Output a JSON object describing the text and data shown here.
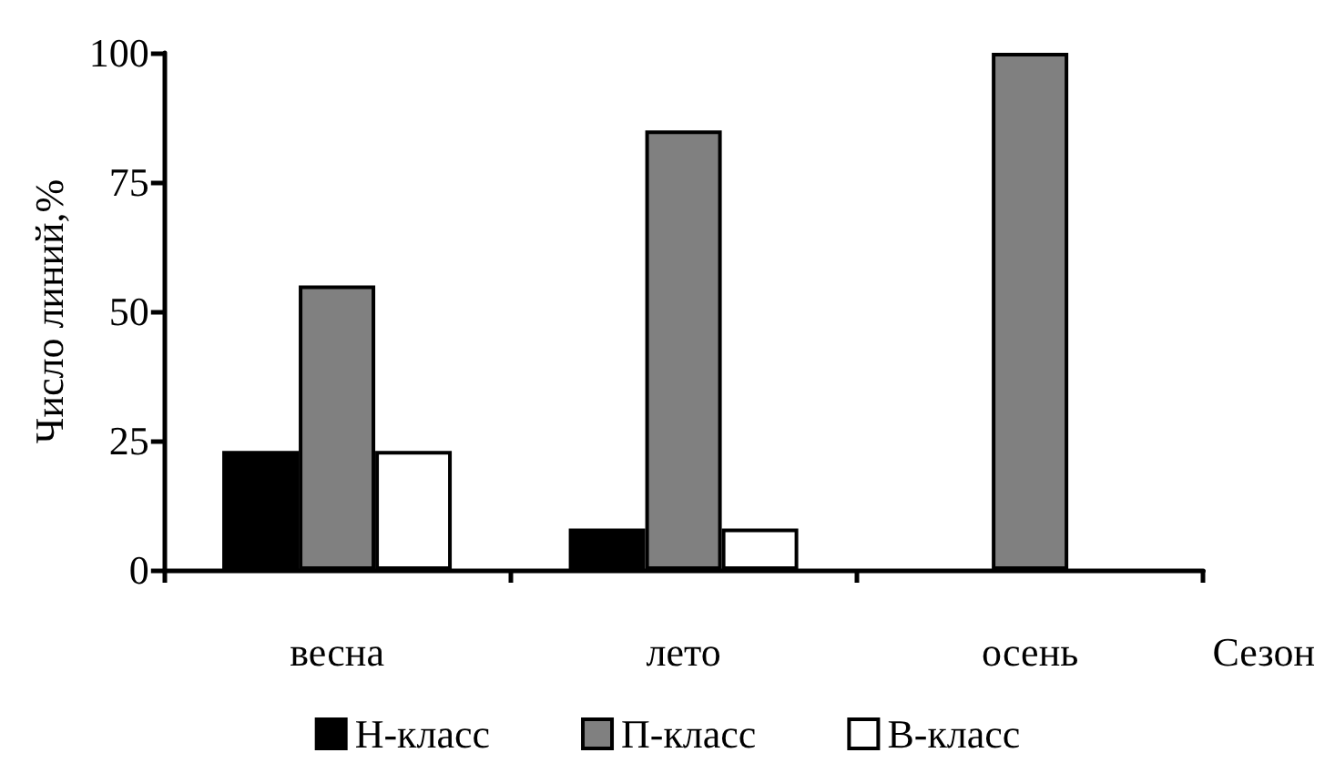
{
  "chart_data": {
    "type": "bar",
    "ylabel": "Число линий,%",
    "xlabel": "Сезон",
    "categories": [
      "весна",
      "лето",
      "осень"
    ],
    "series": [
      {
        "name": "Н-класс",
        "color": "#000000",
        "values": [
          23,
          8,
          0
        ]
      },
      {
        "name": "П-класс",
        "color": "#808080",
        "values": [
          55,
          85,
          100
        ]
      },
      {
        "name": "В-класс",
        "color": "#ffffff",
        "values": [
          23,
          8,
          0
        ]
      }
    ],
    "ylim": [
      0,
      100
    ],
    "yticks": [
      0,
      25,
      50,
      75,
      100
    ],
    "grid": false,
    "legend": "bottom"
  }
}
